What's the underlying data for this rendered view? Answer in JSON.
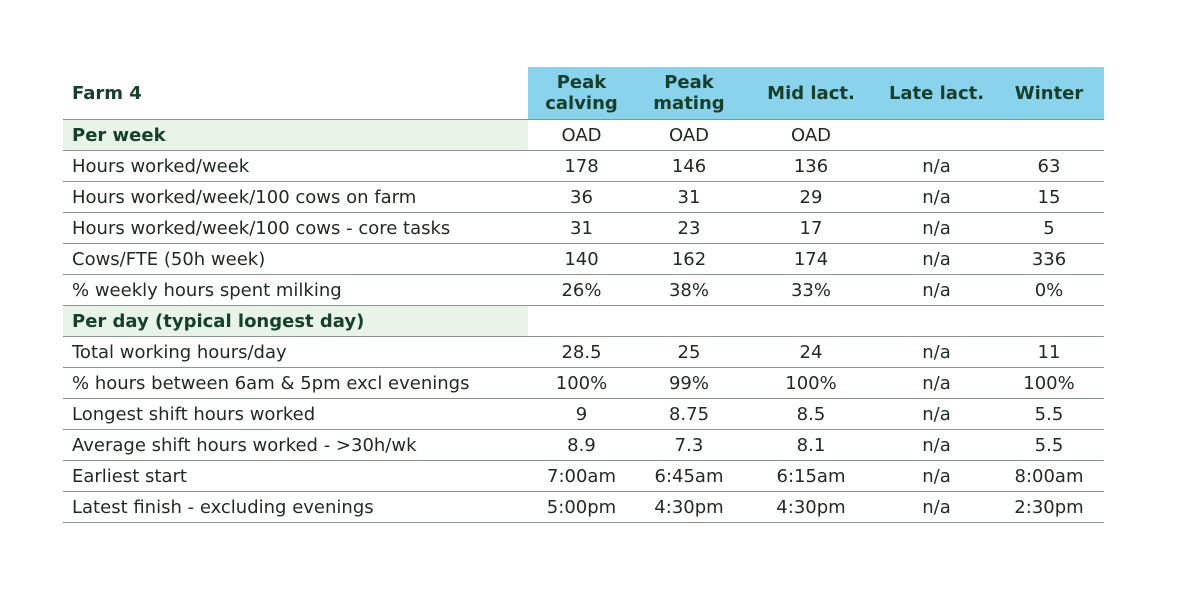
{
  "title": "Farm 4",
  "columns": [
    "Peak\ncalving",
    "Peak\nmating",
    "Mid lact.",
    "Late lact.",
    "Winter"
  ],
  "rows": [
    {
      "section": true,
      "label": "Per week",
      "values": [
        "OAD",
        "OAD",
        "OAD",
        "",
        ""
      ]
    },
    {
      "label": "Hours worked/week",
      "values": [
        "178",
        "146",
        "136",
        "n/a",
        "63"
      ]
    },
    {
      "label": "Hours worked/week/100  cows on farm",
      "values": [
        "36",
        "31",
        "29",
        "n/a",
        "15"
      ]
    },
    {
      "label": "Hours worked/week/100 cows - core tasks",
      "values": [
        "31",
        "23",
        "17",
        "n/a",
        "5"
      ]
    },
    {
      "label": "Cows/FTE (50h week)",
      "values": [
        "140",
        "162",
        "174",
        "n/a",
        "336"
      ]
    },
    {
      "label": "% weekly hours spent milking",
      "values": [
        "26%",
        "38%",
        "33%",
        "n/a",
        "0%"
      ]
    },
    {
      "section": true,
      "label": "Per day (typical longest day)",
      "values": [
        "",
        "",
        "",
        "",
        ""
      ]
    },
    {
      "label": "Total working hours/day",
      "values": [
        "28.5",
        "25",
        "24",
        "n/a",
        "11"
      ]
    },
    {
      "label": "% hours between 6am & 5pm excl evenings",
      "values": [
        "100%",
        "99%",
        "100%",
        "n/a",
        "100%"
      ]
    },
    {
      "label": "Longest shift hours worked",
      "values": [
        "9",
        "8.75",
        "8.5",
        "n/a",
        "5.5"
      ]
    },
    {
      "label": "Average shift hours worked - >30h/wk",
      "values": [
        "8.9",
        "7.3",
        "8.1",
        "n/a",
        "5.5"
      ]
    },
    {
      "label": "Earliest start",
      "values": [
        "7:00am",
        "6:45am",
        "6:15am",
        "n/a",
        "8:00am"
      ]
    },
    {
      "label": "Latest finish - excluding evenings",
      "values": [
        "5:00pm",
        "4:30pm",
        "4:30pm",
        "n/a",
        "2:30pm"
      ]
    }
  ]
}
